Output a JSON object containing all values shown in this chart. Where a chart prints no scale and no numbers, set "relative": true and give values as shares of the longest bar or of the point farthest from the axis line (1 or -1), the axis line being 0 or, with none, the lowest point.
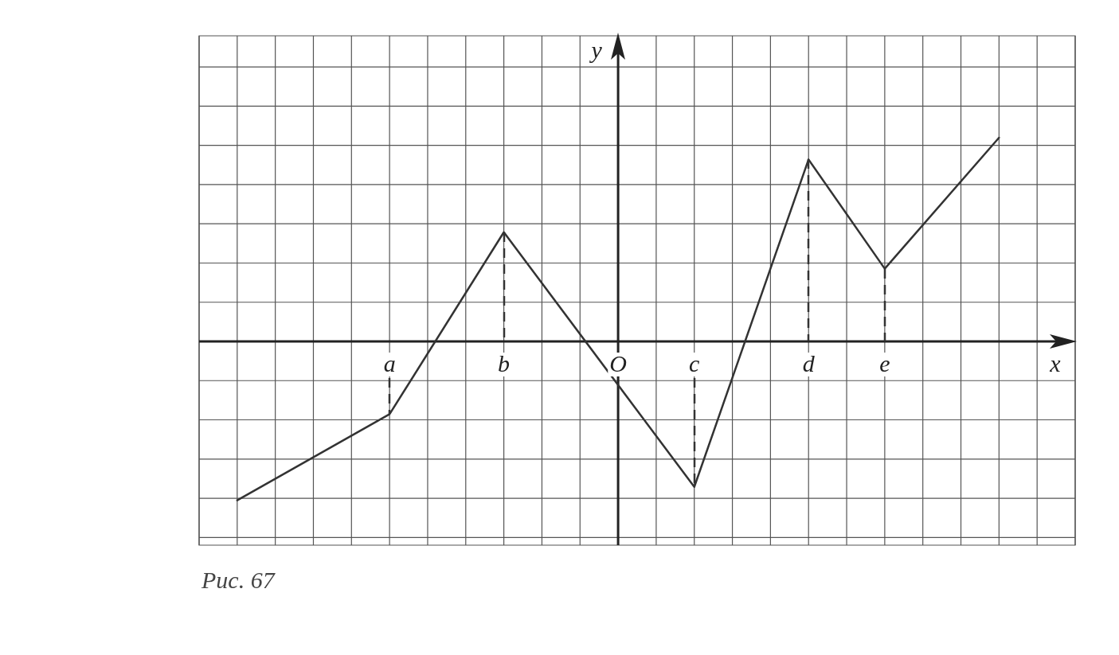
{
  "chart_data": {
    "type": "line",
    "relative": true,
    "xlabel": "x",
    "ylabel": "y",
    "categories": [
      null,
      null,
      null,
      null,
      null,
      "a",
      null,
      null,
      "b",
      null,
      null,
      "O",
      null,
      "c",
      null,
      null,
      "d",
      null,
      "e",
      null,
      null,
      null,
      null,
      null
    ],
    "grid": true,
    "legend": false,
    "marker": "none",
    "line_style": "solid",
    "series": [
      {
        "color": "#333333",
        "values": [
          null,
          -0.78,
          null,
          null,
          null,
          -0.357,
          null,
          null,
          0.536,
          null,
          null,
          null,
          null,
          -0.714,
          null,
          null,
          0.893,
          null,
          0.357,
          null,
          null,
          1,
          null,
          null
        ]
      }
    ],
    "annotations": [
      "Рис. 67"
    ]
  }
}
